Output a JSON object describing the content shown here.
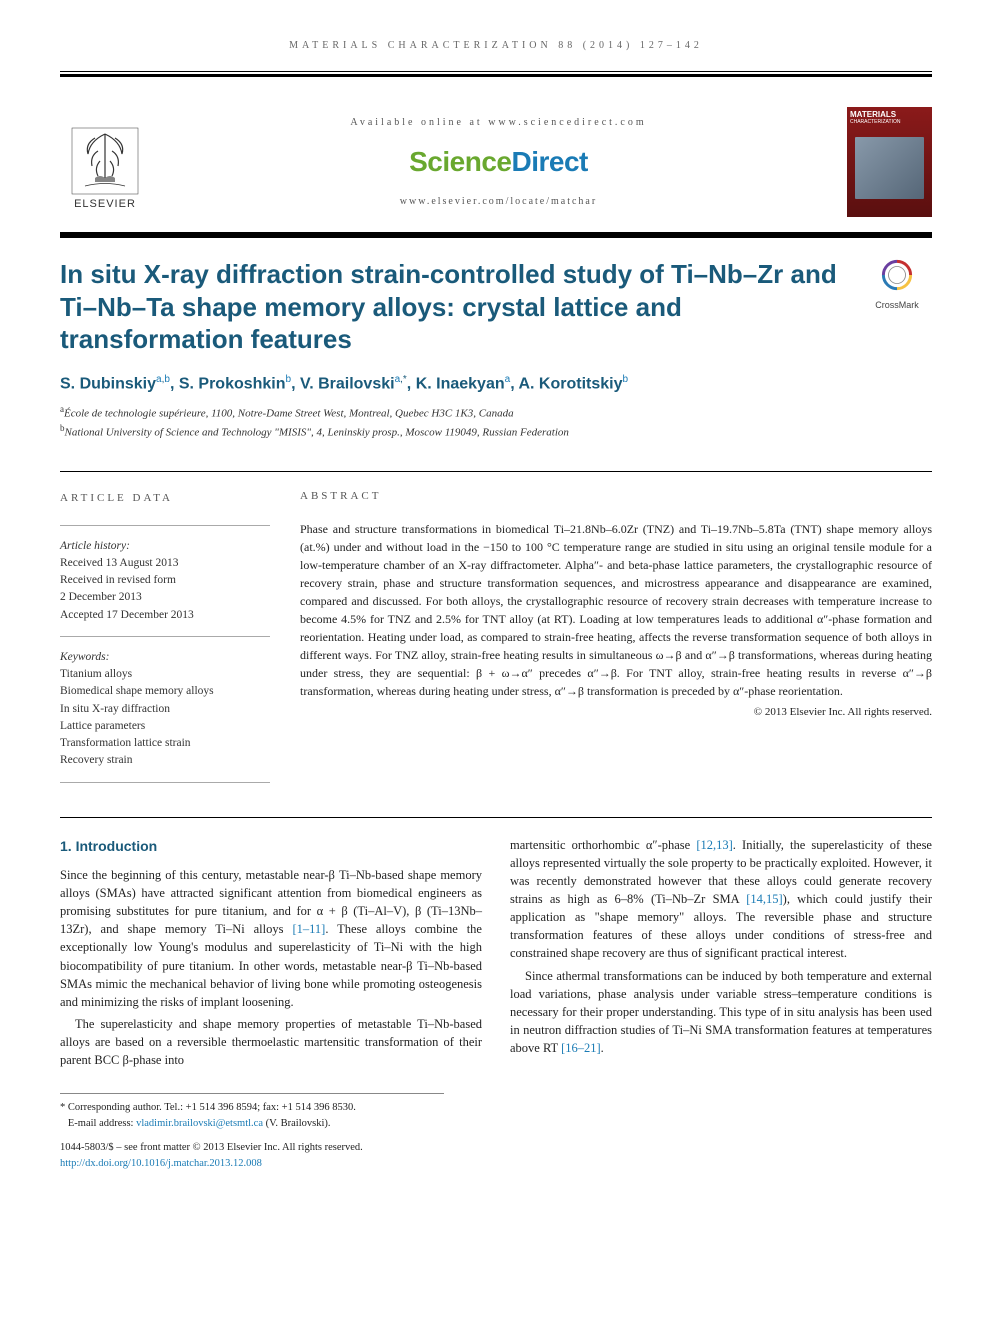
{
  "journal": {
    "running_head": "MATERIALS CHARACTERIZATION 88 (2014) 127–142",
    "available_online": "Available online at www.sciencedirect.com",
    "brand_left": "Science",
    "brand_right": "Direct",
    "journal_url": "www.elsevier.com/locate/matchar",
    "publisher": "ELSEVIER",
    "cover_title": "MATERIALS",
    "cover_subtitle": "CHARACTERIZATION"
  },
  "crossmark": {
    "label": "CrossMark"
  },
  "article": {
    "title": "In situ X-ray diffraction strain-controlled study of Ti–Nb–Zr and Ti–Nb–Ta shape memory alloys: crystal lattice and transformation features",
    "authors_html": "S. Dubinskiy<sup><a>a</a>,<a>b</a></sup>, S. Prokoshkin<sup><a>b</a></sup>, V. Brailovski<sup><a>a</a>,*</sup>, K. Inaekyan<sup><a>a</a></sup>, A. Korotitskiy<sup><a>b</a></sup>",
    "affiliations": {
      "a": "École de technologie supérieure, 1100, Notre-Dame Street West, Montreal, Quebec H3C 1K3, Canada",
      "b": "National University of Science and Technology \"MISIS\", 4, Leninskiy prosp., Moscow 119049, Russian Federation"
    }
  },
  "article_data": {
    "label": "ARTICLE DATA",
    "history_label": "Article history:",
    "received": "Received 13 August 2013",
    "revised1": "Received in revised form",
    "revised2": "2 December 2013",
    "accepted": "Accepted 17 December 2013",
    "keywords_label": "Keywords:",
    "keywords": [
      "Titanium alloys",
      "Biomedical shape memory alloys",
      "In situ X-ray diffraction",
      "Lattice parameters",
      "Transformation lattice strain",
      "Recovery strain"
    ]
  },
  "abstract": {
    "label": "ABSTRACT",
    "text": "Phase and structure transformations in biomedical Ti–21.8Nb–6.0Zr (TNZ) and Ti–19.7Nb–5.8Ta (TNT) shape memory alloys (at.%) under and without load in the −150 to 100 °C temperature range are studied in situ using an original tensile module for a low-temperature chamber of an X-ray diffractometer. Alpha″- and beta-phase lattice parameters, the crystallographic resource of recovery strain, phase and structure transformation sequences, and microstress appearance and disappearance are examined, compared and discussed. For both alloys, the crystallographic resource of recovery strain decreases with temperature increase to become 4.5% for TNZ and 2.5% for TNT alloy (at RT). Loading at low temperatures leads to additional α″-phase formation and reorientation. Heating under load, as compared to strain-free heating, affects the reverse transformation sequence of both alloys in different ways. For TNZ alloy, strain-free heating results in simultaneous ω→β and α″→β transformations, whereas during heating under stress, they are sequential: β + ω→α″ precedes α″→β. For TNT alloy, strain-free heating results in reverse α″→β transformation, whereas during heating under stress, α″→β transformation is preceded by α″-phase reorientation.",
    "copyright": "© 2013 Elsevier Inc. All rights reserved."
  },
  "body": {
    "heading": "1. Introduction",
    "p1": "Since the beginning of this century, metastable near-β Ti–Nb-based shape memory alloys (SMAs) have attracted significant attention from biomedical engineers as promising substitutes for pure titanium, and for α + β (Ti–Al–V), β (Ti–13Nb–13Zr), and shape memory Ti–Ni alloys [1–11]. These alloys combine the exceptionally low Young's modulus and superelasticity of Ti–Ni with the high biocompatibility of pure titanium. In other words, metastable near-β Ti–Nb-based SMAs mimic the mechanical behavior of living bone while promoting osteogenesis and minimizing the risks of implant loosening.",
    "p2": "The superelasticity and shape memory properties of metastable Ti–Nb-based alloys are based on a reversible thermoelastic martensitic transformation of their parent BCC β-phase into",
    "p3": "martensitic orthorhombic α″-phase [12,13]. Initially, the superelasticity of these alloys represented virtually the sole property to be practically exploited. However, it was recently demonstrated however that these alloys could generate recovery strains as high as 6–8% (Ti–Nb–Zr SMA [14,15]), which could justify their application as \"shape memory\" alloys. The reversible phase and structure transformation features of these alloys under conditions of stress-free and constrained shape recovery are thus of significant practical interest.",
    "p4": "Since athermal transformations can be induced by both temperature and external load variations, phase analysis under variable stress–temperature conditions is necessary for their proper understanding. This type of in situ analysis has been used in neutron diffraction studies of Ti–Ni SMA transformation features at temperatures above RT [16–21]."
  },
  "footer": {
    "corresponding": "* Corresponding author. Tel.: +1 514 396 8594; fax: +1 514 396 8530.",
    "email_label": "E-mail address:",
    "email": "vladimir.brailovski@etsmtl.ca",
    "email_author": "(V. Brailovski).",
    "issn": "1044-5803/$ – see front matter © 2013 Elsevier Inc. All rights reserved.",
    "doi": "http://dx.doi.org/10.1016/j.matchar.2013.12.008"
  },
  "colors": {
    "title": "#1a5a7a",
    "link": "#1a7bb5",
    "sd_green": "#69a82f",
    "sd_blue": "#1a7bb5"
  }
}
